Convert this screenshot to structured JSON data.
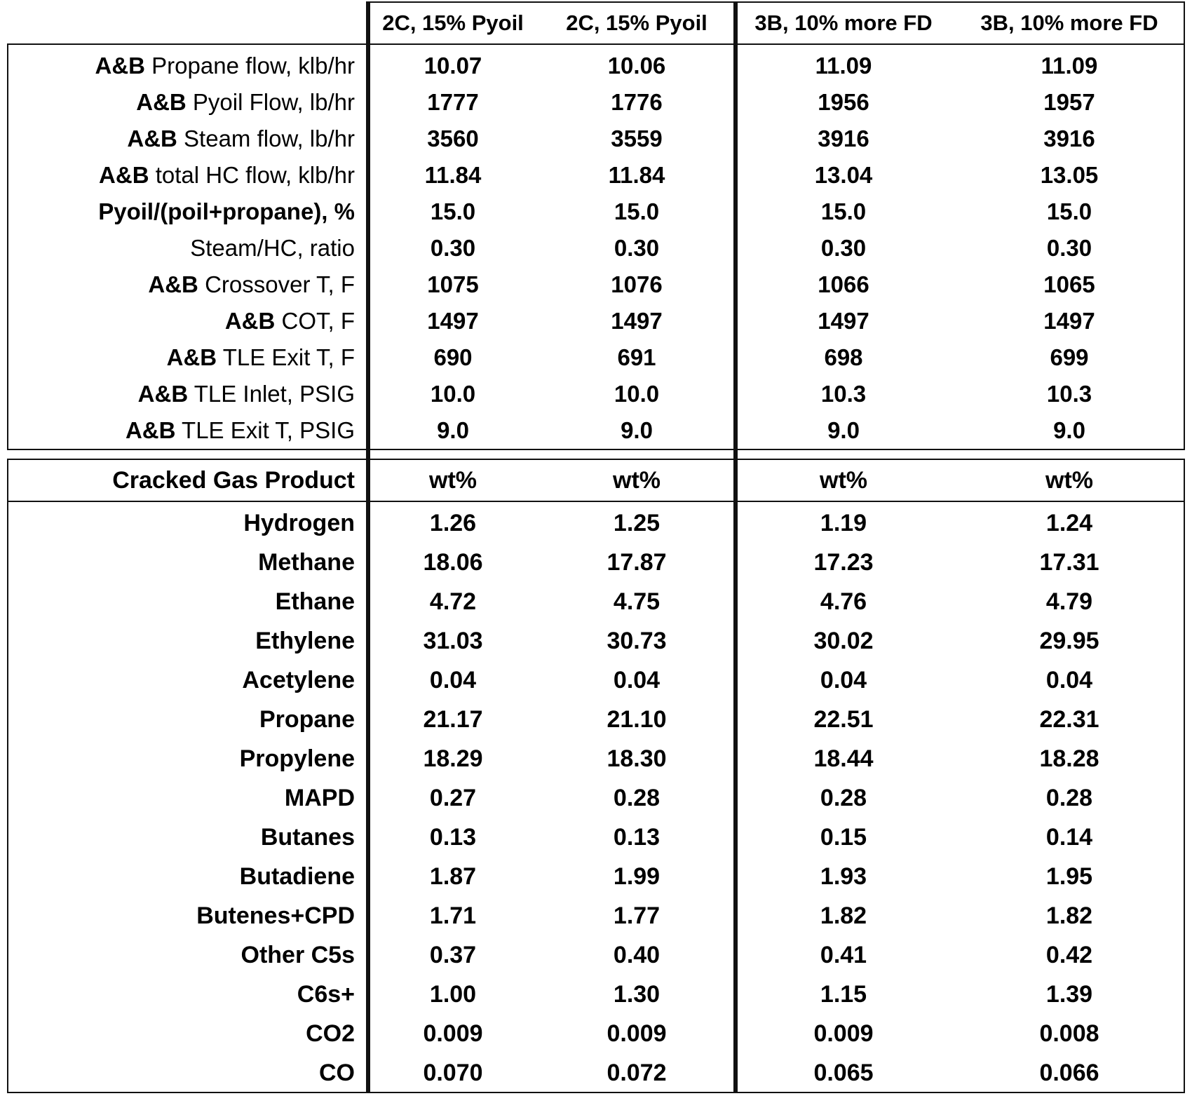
{
  "header": {
    "columns": [
      "2C, 15% Pyoil",
      "2C, 15% Pyoil",
      "3B, 10% more FD",
      "3B, 10% more FD"
    ]
  },
  "conditions": [
    {
      "prefix": "A&B",
      "label": "Propane flow, klb/hr",
      "values": [
        "10.07",
        "10.06",
        "11.09",
        "11.09"
      ]
    },
    {
      "prefix": "A&B",
      "label": "Pyoil Flow, lb/hr",
      "values": [
        "1777",
        "1776",
        "1956",
        "1957"
      ]
    },
    {
      "prefix": "A&B",
      "label": "Steam flow, lb/hr",
      "values": [
        "3560",
        "3559",
        "3916",
        "3916"
      ]
    },
    {
      "prefix": "A&B",
      "label": "total HC flow, klb/hr",
      "values": [
        "11.84",
        "11.84",
        "13.04",
        "13.05"
      ]
    },
    {
      "prefix": "Pyoil/(poil+propane), %",
      "label": "",
      "values": [
        "15.0",
        "15.0",
        "15.0",
        "15.0"
      ]
    },
    {
      "prefix": "",
      "label": "Steam/HC, ratio",
      "values": [
        "0.30",
        "0.30",
        "0.30",
        "0.30"
      ]
    },
    {
      "prefix": "A&B",
      "label": "Crossover T, F",
      "values": [
        "1075",
        "1076",
        "1066",
        "1065"
      ]
    },
    {
      "prefix": "A&B",
      "label": "COT, F",
      "values": [
        "1497",
        "1497",
        "1497",
        "1497"
      ]
    },
    {
      "prefix": "A&B",
      "label": "TLE Exit T, F",
      "values": [
        "690",
        "691",
        "698",
        "699"
      ]
    },
    {
      "prefix": "A&B",
      "label": "TLE Inlet, PSIG",
      "values": [
        "10.0",
        "10.0",
        "10.3",
        "10.3"
      ]
    },
    {
      "prefix": "A&B",
      "label": "TLE Exit T, PSIG",
      "values": [
        "9.0",
        "9.0",
        "9.0",
        "9.0"
      ]
    }
  ],
  "product_header": {
    "label": "Cracked Gas Product",
    "units": [
      "wt%",
      "wt%",
      "wt%",
      "wt%"
    ]
  },
  "products": [
    {
      "label": "Hydrogen",
      "values": [
        "1.26",
        "1.25",
        "1.19",
        "1.24"
      ]
    },
    {
      "label": "Methane",
      "values": [
        "18.06",
        "17.87",
        "17.23",
        "17.31"
      ]
    },
    {
      "label": "Ethane",
      "values": [
        "4.72",
        "4.75",
        "4.76",
        "4.79"
      ]
    },
    {
      "label": "Ethylene",
      "values": [
        "31.03",
        "30.73",
        "30.02",
        "29.95"
      ]
    },
    {
      "label": "Acetylene",
      "values": [
        "0.04",
        "0.04",
        "0.04",
        "0.04"
      ]
    },
    {
      "label": "Propane",
      "values": [
        "21.17",
        "21.10",
        "22.51",
        "22.31"
      ]
    },
    {
      "label": "Propylene",
      "values": [
        "18.29",
        "18.30",
        "18.44",
        "18.28"
      ]
    },
    {
      "label": "MAPD",
      "values": [
        "0.27",
        "0.28",
        "0.28",
        "0.28"
      ]
    },
    {
      "label": "Butanes",
      "values": [
        "0.13",
        "0.13",
        "0.15",
        "0.14"
      ]
    },
    {
      "label": "Butadiene",
      "values": [
        "1.87",
        "1.99",
        "1.93",
        "1.95"
      ]
    },
    {
      "label": "Butenes+CPD",
      "values": [
        "1.71",
        "1.77",
        "1.82",
        "1.82"
      ]
    },
    {
      "label": "Other C5s",
      "values": [
        "0.37",
        "0.40",
        "0.41",
        "0.42"
      ]
    },
    {
      "label": "C6s+",
      "values": [
        "1.00",
        "1.30",
        "1.15",
        "1.39"
      ]
    },
    {
      "label": "CO2",
      "values": [
        "0.009",
        "0.009",
        "0.009",
        "0.008"
      ]
    },
    {
      "label": "CO",
      "values": [
        "0.070",
        "0.072",
        "0.065",
        "0.066"
      ]
    }
  ]
}
